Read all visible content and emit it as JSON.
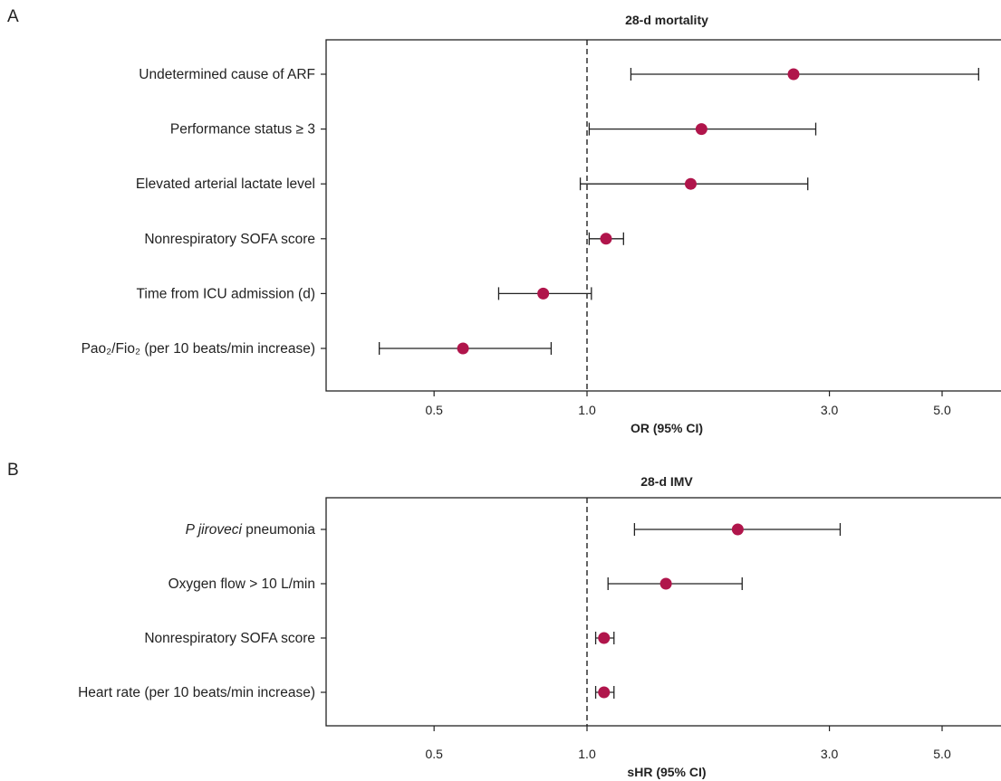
{
  "chart_data": [
    {
      "type": "forest",
      "panel": "A",
      "title": "28-d mortality",
      "xlabel": "OR (95% CI)",
      "xscale": "log",
      "xlim": [
        0.3,
        7.2
      ],
      "xticks": [
        0.5,
        1.0,
        3.0,
        5.0
      ],
      "xtick_labels": [
        "0.5",
        "1.0",
        "3.0",
        "5.0"
      ],
      "reference_line": 1.0,
      "rows": [
        {
          "label": "Undetermined cause of ARF",
          "est": 2.55,
          "low": 1.22,
          "high": 5.9
        },
        {
          "label": "Performance status ≥ 3",
          "est": 1.68,
          "low": 1.01,
          "high": 2.82
        },
        {
          "label": "Elevated arterial lactate level",
          "est": 1.6,
          "low": 0.97,
          "high": 2.72
        },
        {
          "label": "Nonrespiratory SOFA score",
          "est": 1.09,
          "low": 1.01,
          "high": 1.18
        },
        {
          "label": "Time from ICU admission (d)",
          "est": 0.82,
          "low": 0.67,
          "high": 1.02
        },
        {
          "label": "Pao₂/Fio₂ (per 10 beats/min  increase)",
          "est": 0.57,
          "low": 0.39,
          "high": 0.85
        }
      ]
    },
    {
      "type": "forest",
      "panel": "B",
      "title": "28-d IMV",
      "xlabel": "sHR (95% CI)",
      "xscale": "log",
      "xlim": [
        0.3,
        7.2
      ],
      "xticks": [
        0.5,
        1.0,
        3.0,
        5.0
      ],
      "xtick_labels": [
        "0.5",
        "1.0",
        "3.0",
        "5.0"
      ],
      "reference_line": 1.0,
      "rows": [
        {
          "label": "P jiroveci pneumonia",
          "label_italic": "P jiroveci",
          "label_rest": " pneumonia",
          "est": 1.98,
          "low": 1.24,
          "high": 3.15
        },
        {
          "label": "Oxygen flow > 10 L/min",
          "est": 1.43,
          "low": 1.1,
          "high": 2.02
        },
        {
          "label": "Nonrespiratory SOFA score",
          "est": 1.08,
          "low": 1.04,
          "high": 1.13
        },
        {
          "label": "Heart rate (per 10 beats/min  increase)",
          "est": 1.08,
          "low": 1.04,
          "high": 1.13
        }
      ]
    }
  ]
}
